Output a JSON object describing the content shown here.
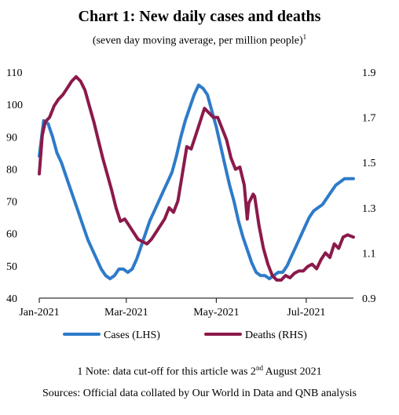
{
  "title": "Chart 1: New daily cases and deaths",
  "subtitle": "(seven day moving average, per million people)",
  "subtitle_sup": "1",
  "note_prefix": "1 Note: data cut-off for this article was 2",
  "note_sup": "nd",
  "note_suffix": " August 2021",
  "sources": "Sources: Official data collated by Our World in Data and QNB analysis",
  "chart_data": {
    "type": "line",
    "title": "Chart 1: New daily cases and deaths",
    "x_tick_labels": [
      "Jan-2021",
      "Mar-2021",
      "May-2021",
      "Jul-2021"
    ],
    "x_tick_dates": [
      "2021-01-01",
      "2021-03-01",
      "2021-05-01",
      "2021-07-01"
    ],
    "x_range": [
      "2021-01-01",
      "2021-08-02"
    ],
    "y_left": {
      "ticks": [
        40,
        50,
        60,
        70,
        80,
        90,
        100,
        110
      ],
      "range": [
        40,
        110
      ]
    },
    "y_right": {
      "ticks": [
        "0.9",
        "1.1",
        "1.3",
        "1.5",
        "1.7",
        "1.9"
      ],
      "range": [
        0.9,
        1.9
      ]
    },
    "grid": false,
    "legend_position": "bottom",
    "series": [
      {
        "name": "Cases (LHS)",
        "axis": "left",
        "color": "#2E7BC9",
        "points": [
          [
            "2021-01-01",
            84
          ],
          [
            "2021-01-04",
            95
          ],
          [
            "2021-01-07",
            94
          ],
          [
            "2021-01-10",
            90
          ],
          [
            "2021-01-13",
            85
          ],
          [
            "2021-01-16",
            82
          ],
          [
            "2021-01-19",
            78
          ],
          [
            "2021-01-22",
            74
          ],
          [
            "2021-01-25",
            70
          ],
          [
            "2021-01-28",
            66
          ],
          [
            "2021-01-31",
            62
          ],
          [
            "2021-02-03",
            58
          ],
          [
            "2021-02-06",
            55
          ],
          [
            "2021-02-09",
            52
          ],
          [
            "2021-02-12",
            49
          ],
          [
            "2021-02-15",
            47
          ],
          [
            "2021-02-18",
            46
          ],
          [
            "2021-02-21",
            47
          ],
          [
            "2021-02-24",
            49
          ],
          [
            "2021-02-27",
            49
          ],
          [
            "2021-03-02",
            48
          ],
          [
            "2021-03-05",
            49
          ],
          [
            "2021-03-08",
            52
          ],
          [
            "2021-03-11",
            56
          ],
          [
            "2021-03-14",
            60
          ],
          [
            "2021-03-17",
            64
          ],
          [
            "2021-03-20",
            67
          ],
          [
            "2021-03-23",
            70
          ],
          [
            "2021-03-26",
            73
          ],
          [
            "2021-03-29",
            76
          ],
          [
            "2021-04-01",
            79
          ],
          [
            "2021-04-04",
            84
          ],
          [
            "2021-04-07",
            90
          ],
          [
            "2021-04-10",
            95
          ],
          [
            "2021-04-13",
            99
          ],
          [
            "2021-04-16",
            103
          ],
          [
            "2021-04-19",
            106
          ],
          [
            "2021-04-22",
            105
          ],
          [
            "2021-04-25",
            103
          ],
          [
            "2021-04-28",
            98
          ],
          [
            "2021-05-01",
            93
          ],
          [
            "2021-05-04",
            87
          ],
          [
            "2021-05-07",
            81
          ],
          [
            "2021-05-10",
            75
          ],
          [
            "2021-05-13",
            70
          ],
          [
            "2021-05-16",
            64
          ],
          [
            "2021-05-19",
            59
          ],
          [
            "2021-05-22",
            55
          ],
          [
            "2021-05-25",
            51
          ],
          [
            "2021-05-28",
            48
          ],
          [
            "2021-05-31",
            47
          ],
          [
            "2021-06-03",
            47
          ],
          [
            "2021-06-06",
            46
          ],
          [
            "2021-06-09",
            47
          ],
          [
            "2021-06-12",
            48
          ],
          [
            "2021-06-15",
            48
          ],
          [
            "2021-06-18",
            50
          ],
          [
            "2021-06-21",
            53
          ],
          [
            "2021-06-24",
            56
          ],
          [
            "2021-06-27",
            59
          ],
          [
            "2021-06-30",
            62
          ],
          [
            "2021-07-03",
            65
          ],
          [
            "2021-07-06",
            67
          ],
          [
            "2021-07-09",
            68
          ],
          [
            "2021-07-12",
            69
          ],
          [
            "2021-07-15",
            71
          ],
          [
            "2021-07-18",
            73
          ],
          [
            "2021-07-21",
            75
          ],
          [
            "2021-07-24",
            76
          ],
          [
            "2021-07-27",
            77
          ],
          [
            "2021-07-30",
            77
          ],
          [
            "2021-08-02",
            77
          ]
        ]
      },
      {
        "name": "Deaths (RHS)",
        "axis": "right",
        "color": "#8B1A4B",
        "points": [
          [
            "2021-01-01",
            1.45
          ],
          [
            "2021-01-03",
            1.62
          ],
          [
            "2021-01-05",
            1.68
          ],
          [
            "2021-01-08",
            1.7
          ],
          [
            "2021-01-11",
            1.75
          ],
          [
            "2021-01-14",
            1.78
          ],
          [
            "2021-01-17",
            1.8
          ],
          [
            "2021-01-20",
            1.83
          ],
          [
            "2021-01-23",
            1.86
          ],
          [
            "2021-01-26",
            1.88
          ],
          [
            "2021-01-29",
            1.86
          ],
          [
            "2021-02-01",
            1.82
          ],
          [
            "2021-02-04",
            1.75
          ],
          [
            "2021-02-07",
            1.68
          ],
          [
            "2021-02-10",
            1.6
          ],
          [
            "2021-02-13",
            1.52
          ],
          [
            "2021-02-16",
            1.45
          ],
          [
            "2021-02-19",
            1.38
          ],
          [
            "2021-02-22",
            1.3
          ],
          [
            "2021-02-25",
            1.24
          ],
          [
            "2021-02-28",
            1.25
          ],
          [
            "2021-03-03",
            1.22
          ],
          [
            "2021-03-06",
            1.19
          ],
          [
            "2021-03-09",
            1.16
          ],
          [
            "2021-03-12",
            1.15
          ],
          [
            "2021-03-15",
            1.14
          ],
          [
            "2021-03-18",
            1.16
          ],
          [
            "2021-03-21",
            1.19
          ],
          [
            "2021-03-24",
            1.22
          ],
          [
            "2021-03-27",
            1.25
          ],
          [
            "2021-03-30",
            1.3
          ],
          [
            "2021-04-02",
            1.28
          ],
          [
            "2021-04-05",
            1.33
          ],
          [
            "2021-04-08",
            1.45
          ],
          [
            "2021-04-11",
            1.57
          ],
          [
            "2021-04-14",
            1.56
          ],
          [
            "2021-04-17",
            1.62
          ],
          [
            "2021-04-20",
            1.68
          ],
          [
            "2021-04-23",
            1.74
          ],
          [
            "2021-04-26",
            1.72
          ],
          [
            "2021-04-29",
            1.7
          ],
          [
            "2021-05-02",
            1.7
          ],
          [
            "2021-05-05",
            1.65
          ],
          [
            "2021-05-08",
            1.6
          ],
          [
            "2021-05-11",
            1.52
          ],
          [
            "2021-05-14",
            1.47
          ],
          [
            "2021-05-17",
            1.48
          ],
          [
            "2021-05-20",
            1.4
          ],
          [
            "2021-05-22",
            1.25
          ],
          [
            "2021-05-23",
            1.32
          ],
          [
            "2021-05-26",
            1.36
          ],
          [
            "2021-05-27",
            1.35
          ],
          [
            "2021-05-30",
            1.22
          ],
          [
            "2021-06-02",
            1.12
          ],
          [
            "2021-06-05",
            1.05
          ],
          [
            "2021-06-08",
            1.0
          ],
          [
            "2021-06-11",
            0.98
          ],
          [
            "2021-06-14",
            0.98
          ],
          [
            "2021-06-17",
            1.0
          ],
          [
            "2021-06-20",
            0.99
          ],
          [
            "2021-06-23",
            1.01
          ],
          [
            "2021-06-26",
            1.02
          ],
          [
            "2021-06-29",
            1.02
          ],
          [
            "2021-07-02",
            1.04
          ],
          [
            "2021-07-05",
            1.05
          ],
          [
            "2021-07-08",
            1.03
          ],
          [
            "2021-07-11",
            1.07
          ],
          [
            "2021-07-14",
            1.1
          ],
          [
            "2021-07-17",
            1.08
          ],
          [
            "2021-07-20",
            1.14
          ],
          [
            "2021-07-23",
            1.12
          ],
          [
            "2021-07-26",
            1.17
          ],
          [
            "2021-07-29",
            1.18
          ],
          [
            "2021-08-02",
            1.17
          ]
        ]
      }
    ]
  }
}
